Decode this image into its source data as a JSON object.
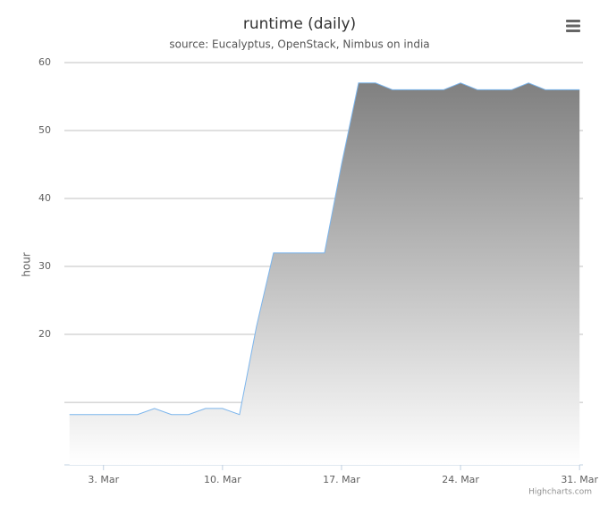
{
  "chart_data": {
    "type": "area",
    "title": "runtime (daily)",
    "subtitle": "source: Eucalyptus, OpenStack, Nimbus on india",
    "y_label": "hour",
    "credit": "Highcharts.com",
    "x": [
      1,
      2,
      3,
      4,
      5,
      6,
      7,
      8,
      9,
      10,
      11,
      12,
      13,
      14,
      15,
      16,
      17,
      18,
      19,
      20,
      21,
      22,
      23,
      24,
      25,
      26,
      27,
      28,
      29,
      30,
      31
    ],
    "values": [
      8.2,
      8.2,
      8.2,
      8.2,
      8.2,
      9.1,
      8.2,
      8.2,
      9.1,
      9.1,
      8.2,
      21.2,
      32,
      32,
      32,
      32,
      45,
      57,
      57,
      56,
      56,
      56,
      56,
      57,
      56,
      56,
      56,
      57,
      56,
      56,
      56
    ],
    "color": "#7cb5ec",
    "fill_top": "#808080",
    "fill_bottom": "#ffffff",
    "xlim": [
      0.7,
      31.2
    ],
    "xticks": [
      {
        "value": 3,
        "label": "3. Mar"
      },
      {
        "value": 10,
        "label": "10. Mar"
      },
      {
        "value": 17,
        "label": "17. Mar"
      },
      {
        "value": 24,
        "label": "24. Mar"
      },
      {
        "value": 31,
        "label": "31. Mar"
      }
    ],
    "ylim": [
      0.8,
      60
    ],
    "yticks": [
      {
        "value": 10,
        "label": null
      },
      20,
      30,
      40,
      50,
      60
    ],
    "grid": true
  }
}
